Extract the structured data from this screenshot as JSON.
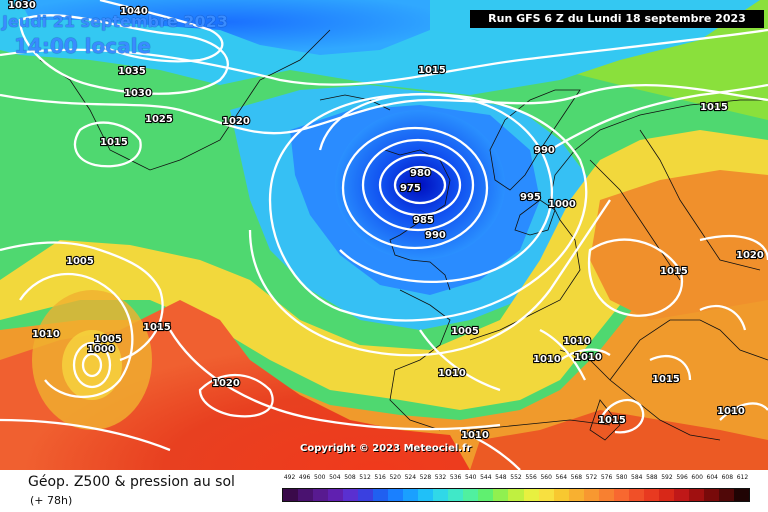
{
  "header": {
    "date": "Jeudi 21 septembre 2023",
    "time": "14:00 locale"
  },
  "run_info": "Run GFS 6 Z du Lundi 18 septembre 2023",
  "copyright": "Copyright © 2023 Meteociel.fr",
  "footer": {
    "product": "Géop. Z500 & pression au sol",
    "forecast_step": "(+ 78h)"
  },
  "isobar_labels": [
    "1030",
    "1040",
    "1035",
    "1030",
    "1025",
    "1020",
    "1015",
    "1015",
    "990",
    "980",
    "975",
    "985",
    "990",
    "995",
    "1000",
    "1015",
    "1020",
    "1015",
    "1005",
    "1005",
    "1000",
    "1010",
    "1015",
    "1005",
    "1010",
    "1010",
    "1010",
    "1010",
    "1020",
    "1015",
    "1015",
    "1010",
    "1010"
  ],
  "colors": {
    "deep_low": "#0020d8",
    "blue": "#1a78ff",
    "cyan": "#34c8f2",
    "green": "#5ce06a",
    "yellow": "#f4e23a",
    "orange": "#f0a030",
    "red": "#e83c1c",
    "isobar": "#ffffff"
  },
  "legend": {
    "values": [
      "492",
      "496",
      "500",
      "504",
      "508",
      "512",
      "516",
      "520",
      "524",
      "528",
      "532",
      "536",
      "540",
      "544",
      "548",
      "552",
      "556",
      "560",
      "564",
      "568",
      "572",
      "576",
      "580",
      "584",
      "588",
      "592",
      "596",
      "600",
      "604",
      "608",
      "612"
    ],
    "colors": [
      "#3a0a4a",
      "#4a1270",
      "#581a90",
      "#6020b0",
      "#5a30d0",
      "#3a40e0",
      "#2060f0",
      "#1a80ff",
      "#1aa0ff",
      "#20c0f8",
      "#30d8e8",
      "#40e8c8",
      "#50f0a0",
      "#60f070",
      "#90f050",
      "#c0f040",
      "#e8f040",
      "#f8e040",
      "#f8c830",
      "#f8b030",
      "#f89830",
      "#f88030",
      "#f86830",
      "#f05028",
      "#e83a20",
      "#d82818",
      "#c01818",
      "#a01010",
      "#780a0a",
      "#500808",
      "#200404"
    ]
  }
}
